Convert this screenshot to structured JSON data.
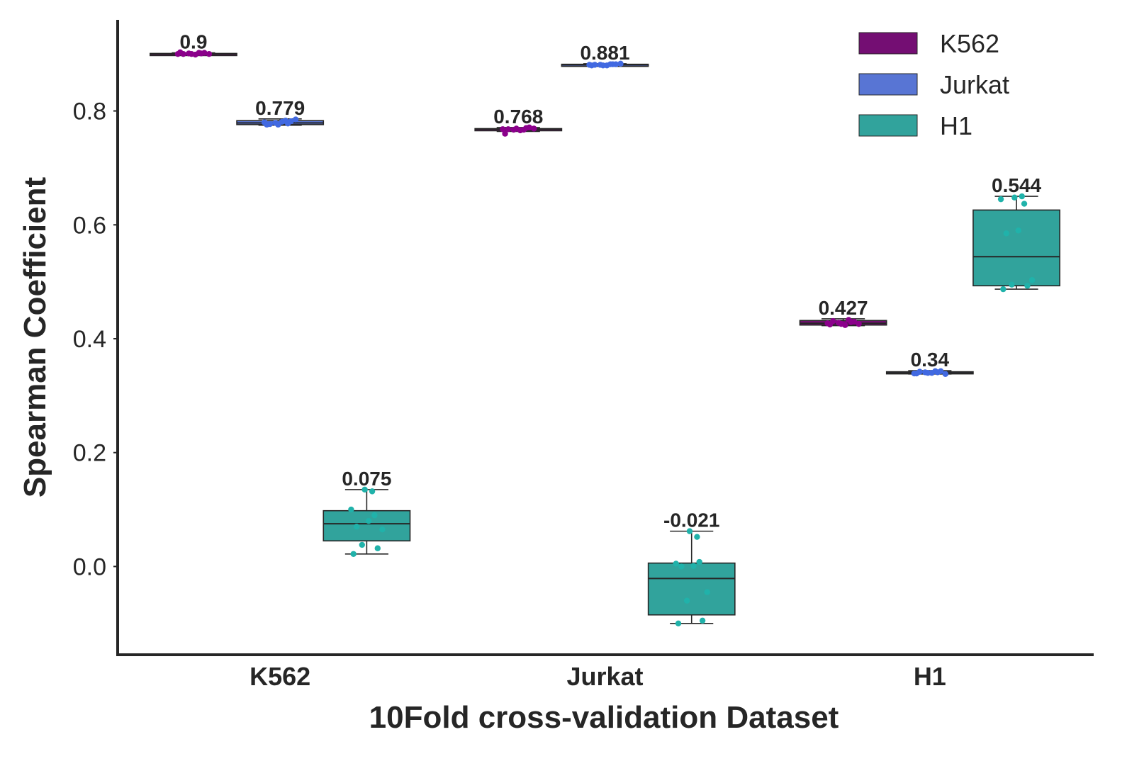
{
  "chart_data": {
    "type": "box",
    "title": "",
    "xlabel": "10Fold cross-validation Dataset",
    "ylabel": "Spearman Coefficient",
    "categories": [
      "K562",
      "Jurkat",
      "H1"
    ],
    "ylim": [
      -0.155,
      0.96
    ],
    "yticks": [
      {
        "value": 0.0,
        "label": "0.0"
      },
      {
        "value": 0.2,
        "label": "0.2"
      },
      {
        "value": 0.4,
        "label": "0.4"
      },
      {
        "value": 0.6,
        "label": "0.6"
      },
      {
        "value": 0.8,
        "label": "0.8"
      }
    ],
    "grid": false,
    "legend_position": "top-right",
    "series": [
      {
        "name": "K562",
        "color": "#740e73",
        "point_color": "#8b008b",
        "boxes": [
          {
            "category": "K562",
            "min": 0.899,
            "q1": 0.9,
            "median": 0.9,
            "q3": 0.901,
            "max": 0.902,
            "label": "0.9",
            "points": [
              0.903,
              0.902,
              0.901,
              0.9,
              0.9,
              0.899,
              0.901,
              0.9,
              0.902,
              0.9
            ]
          },
          {
            "category": "Jurkat",
            "min": 0.764,
            "q1": 0.767,
            "median": 0.768,
            "q3": 0.769,
            "max": 0.771,
            "label": "0.768",
            "points": [
              0.76,
              0.771,
              0.767,
              0.769,
              0.768,
              0.766,
              0.77,
              0.768,
              0.767,
              0.769
            ]
          },
          {
            "category": "H1",
            "min": 0.423,
            "q1": 0.424,
            "median": 0.427,
            "q3": 0.432,
            "max": 0.435,
            "label": "0.427",
            "points": [
              0.425,
              0.43,
              0.428,
              0.426,
              0.431,
              0.424,
              0.429,
              0.427,
              0.433,
              0.426
            ]
          }
        ]
      },
      {
        "name": "Jurkat",
        "color": "#5875d4",
        "point_color": "#4169e1",
        "boxes": [
          {
            "category": "K562",
            "min": 0.775,
            "q1": 0.776,
            "median": 0.779,
            "q3": 0.783,
            "max": 0.786,
            "label": "0.779",
            "points": [
              0.776,
              0.782,
              0.779,
              0.785,
              0.777,
              0.781,
              0.778,
              0.78,
              0.783,
              0.776
            ]
          },
          {
            "category": "Jurkat",
            "min": 0.88,
            "q1": 0.88,
            "median": 0.881,
            "q3": 0.882,
            "max": 0.883,
            "label": "0.881",
            "points": [
              0.88,
              0.882,
              0.881,
              0.883,
              0.881,
              0.88,
              0.882,
              0.881,
              0.882,
              0.88
            ]
          },
          {
            "category": "H1",
            "min": 0.338,
            "q1": 0.339,
            "median": 0.34,
            "q3": 0.342,
            "max": 0.344,
            "label": "0.34",
            "points": [
              0.339,
              0.343,
              0.341,
              0.338,
              0.342,
              0.34,
              0.341,
              0.339,
              0.343,
              0.34
            ]
          }
        ]
      },
      {
        "name": "H1",
        "color": "#31a39c",
        "point_color": "#20b2aa",
        "boxes": [
          {
            "category": "K562",
            "min": 0.022,
            "q1": 0.045,
            "median": 0.075,
            "q3": 0.098,
            "max": 0.135,
            "label": "0.075",
            "points": [
              0.022,
              0.032,
              0.038,
              0.065,
              0.07,
              0.08,
              0.09,
              0.1,
              0.132,
              0.135
            ]
          },
          {
            "category": "Jurkat",
            "min": -0.1,
            "q1": -0.085,
            "median": -0.021,
            "q3": 0.006,
            "max": 0.062,
            "label": "-0.021",
            "points": [
              -0.1,
              -0.095,
              -0.06,
              -0.045,
              0.0,
              0.001,
              0.008,
              0.005,
              0.052,
              0.062
            ]
          },
          {
            "category": "H1",
            "min": 0.487,
            "q1": 0.493,
            "median": 0.544,
            "q3": 0.626,
            "max": 0.65,
            "label": "0.544",
            "points": [
              0.487,
              0.493,
              0.495,
              0.503,
              0.585,
              0.59,
              0.637,
              0.645,
              0.65,
              0.648
            ]
          }
        ]
      }
    ]
  }
}
